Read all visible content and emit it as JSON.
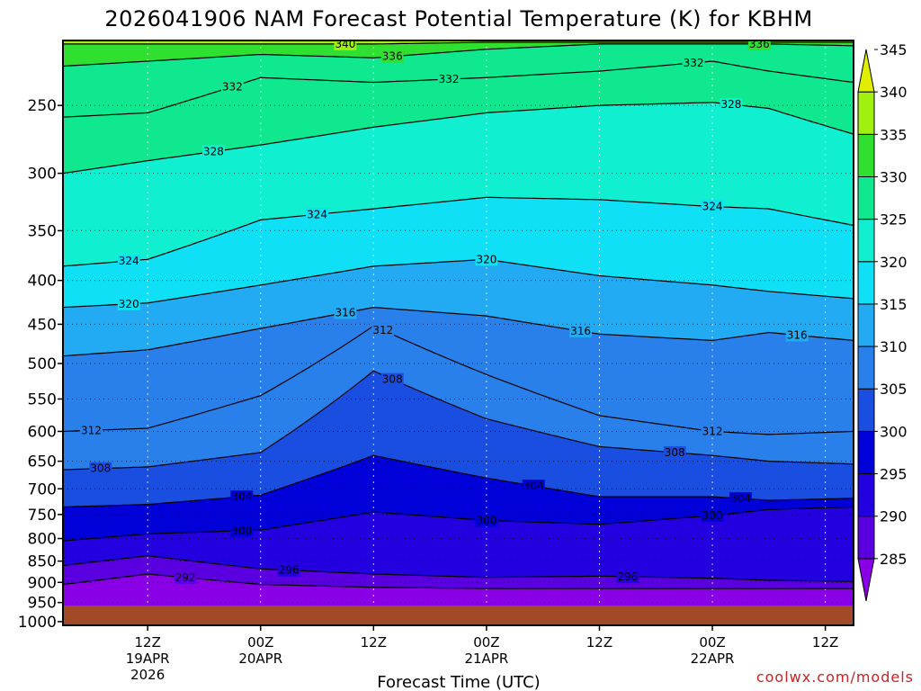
{
  "chart_data": {
    "type": "heatmap",
    "title": "2026041906 NAM Forecast Potential Temperature (K) for KBHM",
    "xlabel": "Forecast Time (UTC)",
    "ylabel": "",
    "credit": "coolwx.com/models",
    "y_scale": "log-pressure",
    "ylim": [
      1010,
      210
    ],
    "y_ticks": [
      250,
      300,
      350,
      400,
      450,
      500,
      550,
      600,
      650,
      700,
      750,
      800,
      850,
      900,
      950,
      1000
    ],
    "xlim": [
      -3,
      81
    ],
    "x_tick_hours": [
      6,
      18,
      30,
      42,
      54,
      66,
      78
    ],
    "x_ticks": [
      {
        "hour": 6,
        "line1": "12Z",
        "line2": "19APR",
        "line3": "2026"
      },
      {
        "hour": 18,
        "line1": "00Z",
        "line2": "20APR",
        "line3": ""
      },
      {
        "hour": 30,
        "line1": "12Z",
        "line2": "",
        "line3": ""
      },
      {
        "hour": 42,
        "line1": "00Z",
        "line2": "21APR",
        "line3": ""
      },
      {
        "hour": 54,
        "line1": "12Z",
        "line2": "",
        "line3": ""
      },
      {
        "hour": 66,
        "line1": "00Z",
        "line2": "22APR",
        "line3": ""
      },
      {
        "hour": 78,
        "line1": "12Z",
        "line2": "",
        "line3": ""
      }
    ],
    "grid": true,
    "colorbar": {
      "levels": [
        285,
        290,
        295,
        300,
        305,
        310,
        315,
        320,
        325,
        330,
        335,
        340,
        345
      ],
      "colors": [
        "#8a00e6",
        "#5a00e0",
        "#2200e0",
        "#0000d8",
        "#1a4ee0",
        "#2a80ea",
        "#22aaf2",
        "#10e0f5",
        "#10f0d0",
        "#10e890",
        "#30e030",
        "#a0f010",
        "#e0ee00"
      ]
    },
    "contour_levels": [
      292,
      296,
      300,
      304,
      308,
      312,
      316,
      320,
      324,
      328,
      332,
      336,
      340
    ],
    "isentrope_pressures": {
      "hours": [
        -3,
        6,
        18,
        30,
        42,
        54,
        66,
        72,
        81
      ],
      "levels": [
        {
          "theta": 292,
          "p": [
            905,
            880,
            905,
            912,
            915,
            915,
            915,
            915,
            915
          ]
        },
        {
          "theta": 296,
          "p": [
            860,
            838,
            868,
            880,
            888,
            885,
            890,
            895,
            898
          ]
        },
        {
          "theta": 300,
          "p": [
            805,
            790,
            782,
            745,
            762,
            770,
            752,
            740,
            735
          ]
        },
        {
          "theta": 304,
          "p": [
            735,
            730,
            712,
            640,
            680,
            715,
            715,
            722,
            718
          ]
        },
        {
          "theta": 308,
          "p": [
            665,
            660,
            635,
            510,
            580,
            625,
            640,
            650,
            655
          ]
        },
        {
          "theta": 312,
          "p": [
            600,
            595,
            545,
            452,
            515,
            575,
            600,
            605,
            600
          ]
        },
        {
          "theta": 316,
          "p": [
            490,
            482,
            455,
            430,
            440,
            462,
            470,
            460,
            470
          ]
        },
        {
          "theta": 320,
          "p": [
            430,
            425,
            405,
            385,
            378,
            395,
            405,
            412,
            420
          ]
        },
        {
          "theta": 324,
          "p": [
            385,
            378,
            340,
            330,
            320,
            322,
            328,
            330,
            345
          ]
        },
        {
          "theta": 328,
          "p": [
            300,
            290,
            278,
            265,
            255,
            250,
            248,
            252,
            270
          ]
        },
        {
          "theta": 332,
          "p": [
            258,
            255,
            232,
            235,
            232,
            228,
            222,
            228,
            235
          ]
        },
        {
          "theta": 336,
          "p": [
            225,
            222,
            218,
            220,
            215,
            212,
            212,
            212,
            213
          ]
        },
        {
          "theta": 340,
          "p": [
            212,
            212,
            212,
            212,
            211,
            211,
            211,
            211,
            211
          ]
        }
      ]
    },
    "contour_labels": [
      {
        "theta": 340,
        "hour": 27
      },
      {
        "theta": 336,
        "hour": 32
      },
      {
        "theta": 336,
        "hour": 71
      },
      {
        "theta": 332,
        "hour": 15
      },
      {
        "theta": 332,
        "hour": 38
      },
      {
        "theta": 332,
        "hour": 64
      },
      {
        "theta": 328,
        "hour": 13
      },
      {
        "theta": 328,
        "hour": 68
      },
      {
        "theta": 324,
        "hour": 24
      },
      {
        "theta": 324,
        "hour": 66
      },
      {
        "theta": 324,
        "hour": 4
      },
      {
        "theta": 320,
        "hour": 42
      },
      {
        "theta": 320,
        "hour": 4
      },
      {
        "theta": 316,
        "hour": 27
      },
      {
        "theta": 316,
        "hour": 52
      },
      {
        "theta": 316,
        "hour": 75
      },
      {
        "theta": 312,
        "hour": 31
      },
      {
        "theta": 312,
        "hour": 66
      },
      {
        "theta": 312,
        "hour": 0
      },
      {
        "theta": 308,
        "hour": 32
      },
      {
        "theta": 308,
        "hour": 62
      },
      {
        "theta": 308,
        "hour": 1
      },
      {
        "theta": 304,
        "hour": 16
      },
      {
        "theta": 304,
        "hour": 47
      },
      {
        "theta": 304,
        "hour": 69
      },
      {
        "theta": 300,
        "hour": 16
      },
      {
        "theta": 300,
        "hour": 42
      },
      {
        "theta": 300,
        "hour": 66
      },
      {
        "theta": 296,
        "hour": 21
      },
      {
        "theta": 296,
        "hour": 57
      },
      {
        "theta": 292,
        "hour": 10
      }
    ],
    "surface_color": "#a24a28"
  }
}
